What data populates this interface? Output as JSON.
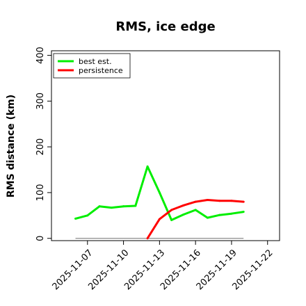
{
  "chart_data": {
    "type": "line",
    "title": "RMS, ice edge",
    "xlabel": "",
    "ylabel": "RMS distance (km)",
    "x_ticks": [
      "2025-11-07",
      "2025-11-10",
      "2025-11-13",
      "2025-11-16",
      "2025-11-19",
      "2025-11-22"
    ],
    "y_ticks": [
      0,
      100,
      200,
      300,
      400
    ],
    "xlim": [
      "2025-11-04",
      "2025-11-23"
    ],
    "ylim": [
      -5,
      410
    ],
    "grid": false,
    "legend_position": "top-left",
    "series": [
      {
        "name": "best est.",
        "color": "#00ee00",
        "points": [
          [
            "2025-11-06",
            43
          ],
          [
            "2025-11-07",
            50
          ],
          [
            "2025-11-08",
            70
          ],
          [
            "2025-11-09",
            67
          ],
          [
            "2025-11-10",
            70
          ],
          [
            "2025-11-11",
            71
          ],
          [
            "2025-11-12",
            157
          ],
          [
            "2025-11-13",
            100
          ],
          [
            "2025-11-14",
            40
          ],
          [
            "2025-11-15",
            52
          ],
          [
            "2025-11-16",
            62
          ],
          [
            "2025-11-17",
            45
          ],
          [
            "2025-11-18",
            51
          ],
          [
            "2025-11-19",
            54
          ],
          [
            "2025-11-20",
            58
          ]
        ]
      },
      {
        "name": "persistence",
        "color": "#ff0000",
        "points": [
          [
            "2025-11-12",
            0
          ],
          [
            "2025-11-13",
            42
          ],
          [
            "2025-11-14",
            62
          ],
          [
            "2025-11-15",
            72
          ],
          [
            "2025-11-16",
            80
          ],
          [
            "2025-11-17",
            84
          ],
          [
            "2025-11-18",
            82
          ],
          [
            "2025-11-19",
            82
          ],
          [
            "2025-11-20",
            80
          ]
        ]
      }
    ],
    "reference_line": {
      "y": 0,
      "from": "2025-11-06",
      "to": "2025-11-20",
      "color": "#808080"
    }
  }
}
